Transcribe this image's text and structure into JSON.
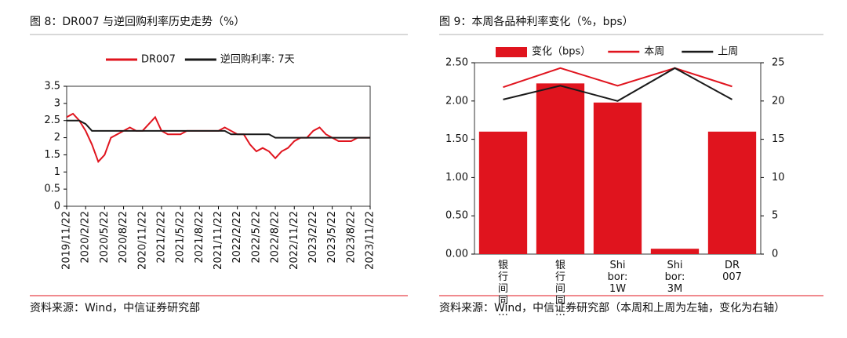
{
  "chart_data": [
    {
      "type": "line",
      "title": "图 8：DR007 与逆回购利率历史走势（%）",
      "source": "资料来源：Wind，中信证券研究部",
      "legend": "top",
      "categories": [
        "2019/11/22",
        null,
        null,
        "2020/2/22",
        null,
        null,
        "2020/5/22",
        null,
        null,
        "2020/8/22",
        null,
        null,
        "2020/11/22",
        null,
        null,
        "2021/2/22",
        null,
        null,
        "2021/5/22",
        null,
        null,
        "2021/8/22",
        null,
        null,
        "2021/11/22",
        null,
        null,
        "2022/2/22",
        null,
        null,
        "2022/5/22",
        null,
        null,
        "2022/8/22",
        null,
        null,
        "2022/11/22",
        null,
        null,
        "2023/2/22",
        null,
        null,
        "2023/5/22",
        null,
        null,
        "2023/8/22",
        null,
        null,
        "2023/11/22"
      ],
      "series": [
        {
          "name": "DR007",
          "color": "#e0141e",
          "values": [
            2.6,
            2.7,
            2.5,
            2.2,
            1.8,
            1.3,
            1.5,
            2.0,
            2.1,
            2.2,
            2.3,
            2.2,
            2.2,
            2.4,
            2.6,
            2.2,
            2.1,
            2.1,
            2.1,
            2.2,
            2.2,
            2.2,
            2.2,
            2.2,
            2.2,
            2.3,
            2.2,
            2.1,
            2.1,
            1.8,
            1.6,
            1.7,
            1.6,
            1.4,
            1.6,
            1.7,
            1.9,
            2.0,
            2.0,
            2.2,
            2.3,
            2.1,
            2.0,
            1.9,
            1.9,
            1.9,
            2.0,
            2.0,
            2.0
          ]
        },
        {
          "name": "逆回购利率: 7天",
          "color": "#1a1a1a",
          "values": [
            2.5,
            2.5,
            2.5,
            2.4,
            2.2,
            2.2,
            2.2,
            2.2,
            2.2,
            2.2,
            2.2,
            2.2,
            2.2,
            2.2,
            2.2,
            2.2,
            2.2,
            2.2,
            2.2,
            2.2,
            2.2,
            2.2,
            2.2,
            2.2,
            2.2,
            2.2,
            2.1,
            2.1,
            2.1,
            2.1,
            2.1,
            2.1,
            2.1,
            2.0,
            2.0,
            2.0,
            2.0,
            2.0,
            2.0,
            2.0,
            2.0,
            2.0,
            2.0,
            2.0,
            2.0,
            2.0,
            2.0,
            2.0,
            2.0
          ]
        }
      ],
      "ylim": [
        0,
        3.5
      ],
      "yticks": [
        0,
        0.5,
        1,
        1.5,
        2,
        2.5,
        3,
        3.5
      ]
    },
    {
      "type": "combo",
      "title": "图 9：本周各品种利率变化（%，bps）",
      "source": "资料来源：Wind，中信证券研究部（本周和上周为左轴，变化为右轴）",
      "legend": "top",
      "categories": [
        "银行间同…",
        "银行间同…",
        "Shibor:1W",
        "Shibor:3M",
        "DR007"
      ],
      "series": [
        {
          "name": "变化（bps）",
          "type": "bar",
          "axis": "y2",
          "color": "#e0141e",
          "values": [
            16,
            22.3,
            19.8,
            0.7,
            16
          ]
        },
        {
          "name": "本周",
          "type": "line",
          "color": "#e0141e",
          "values": [
            2.18,
            2.43,
            2.2,
            2.43,
            2.19
          ]
        },
        {
          "name": "上周",
          "type": "line",
          "color": "#1a1a1a",
          "values": [
            2.02,
            2.2,
            2.0,
            2.43,
            2.02
          ]
        }
      ],
      "ylim": [
        0,
        2.5
      ],
      "yticks": [
        {
          "value": 0,
          "label": "0.00"
        },
        {
          "value": 0.5,
          "label": "0.50"
        },
        {
          "value": 1,
          "label": "1.00"
        },
        {
          "value": 1.5,
          "label": "1.50"
        },
        {
          "value": 2,
          "label": "2.00"
        },
        {
          "value": 2.5,
          "label": "2.50"
        }
      ],
      "y2lim": [
        0,
        25
      ],
      "y2ticks": [
        0,
        5,
        10,
        15,
        20,
        25
      ]
    }
  ]
}
